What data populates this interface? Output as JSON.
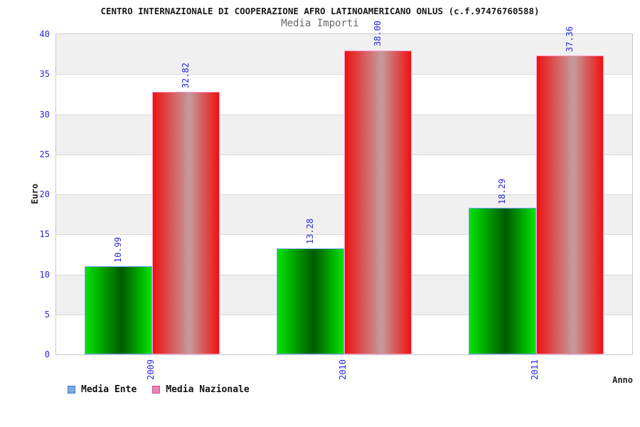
{
  "header": {
    "title": "CENTRO INTERNAZIONALE DI COOPERAZIONE AFRO LATINOAMERICANO ONLUS (c.f.97476760588)",
    "subtitle": "Media Importi"
  },
  "chart_data": {
    "type": "bar",
    "title": "Media Importi",
    "categories": [
      "2009",
      "2010",
      "2011"
    ],
    "series": [
      {
        "name": "Media Ente",
        "values": [
          10.99,
          13.28,
          18.29
        ],
        "gradient": [
          "#00e400",
          "#005a00",
          "#00e400"
        ],
        "border_color": "#77aaff",
        "legend_fill": "#7aaade",
        "legend_border": "#4477bb"
      },
      {
        "name": "Media Nazionale",
        "values": [
          32.82,
          38.0,
          37.36
        ],
        "gradient": [
          "#ee1111",
          "#c49c9c",
          "#ee1111"
        ],
        "border_color": "#ff99cc",
        "legend_fill": "#ee82b4",
        "legend_border": "#cc5590"
      }
    ],
    "xlabel": "Anno",
    "ylabel": "Euro",
    "ylim": [
      0,
      40
    ],
    "ytick_step": 5,
    "value_decimals": 2,
    "grid": true,
    "legend_position": "bottom-left",
    "tick_label_color": "#2828dd",
    "value_label_color": "#2828dd",
    "gridline_color": "#d9d9d9",
    "band_colors": [
      "#f0f0f0",
      "#ffffff"
    ]
  }
}
